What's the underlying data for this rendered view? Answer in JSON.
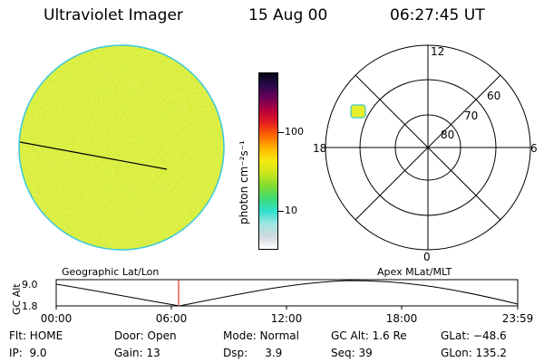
{
  "header": {
    "instrument": "Ultraviolet Imager",
    "date": "15 Aug 00",
    "time": "06:27:45 UT"
  },
  "colorbar": {
    "unit_label": "photon cm⁻²s⁻¹",
    "scale": "log",
    "ticks": [
      "100",
      "10"
    ],
    "colors": [
      "#ffffff",
      "#cfd8dc",
      "#9ee6e3",
      "#2fe0cc",
      "#3fda76",
      "#7ddc2e",
      "#c9e61e",
      "#f4ea10",
      "#ffb800",
      "#ff6a00",
      "#e8201f",
      "#b8003a",
      "#6e0058",
      "#2b0a4c",
      "#050518"
    ]
  },
  "image_panel": {
    "disk_color": "#d6ee3a",
    "rim_color": "#37c8de"
  },
  "polar": {
    "mlt_labels": {
      "top": "12",
      "left": "18",
      "right": "6",
      "bottom": "0"
    },
    "lat_labels": [
      "60",
      "70",
      "80"
    ],
    "aurora_color": "#e7ee2a"
  },
  "altitude_panel": {
    "axis_label": "GC Alt",
    "y_ticks": [
      "9.0",
      "1.8"
    ],
    "left_caption": "Geographic Lat/Lon",
    "right_caption": "Apex MLat/MLT",
    "hours": [
      "00:00",
      "06:00",
      "12:00",
      "18:00",
      "23:59"
    ],
    "current_time_marker_color": "#d9362c"
  },
  "status": {
    "row1": {
      "flt": "Flt: HOME",
      "door": "Door: Open",
      "mode": "Mode: Normal",
      "gc_alt": "GC Alt: 1.6 Re",
      "glat": "GLat: −48.6"
    },
    "row2": {
      "ip": "IP:  9.0",
      "gain": "Gain: 13",
      "dsp": "Dsp:     3.9",
      "seq": "Seq: 39",
      "glon": "GLon: 135.2"
    }
  }
}
